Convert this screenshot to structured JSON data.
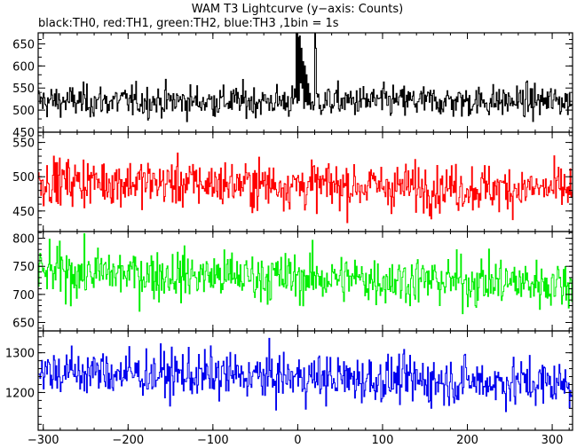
{
  "title": "WAM T3 Lightcurve (y−axis: Counts)",
  "subtitle": "black:TH0, red:TH1, green:TH2, blue:TH3 ,1bin = 1s",
  "chart_data": {
    "type": "line",
    "x_range": [
      -306,
      324
    ],
    "x_ticks": [
      -300,
      -200,
      -100,
      0,
      100,
      200,
      300
    ],
    "x_tick_labels": [
      "−300",
      "−200",
      "−100",
      "0",
      "100",
      "200",
      "300"
    ],
    "grid": false,
    "panels": [
      {
        "series": "TH0",
        "color": "#000000",
        "ylim": [
          450,
          675
        ],
        "y_ticks": [
          450,
          500,
          550,
          600,
          650
        ],
        "y_tick_labels": [
          "450",
          "500",
          "550",
          "600",
          "650"
        ],
        "mean": 520,
        "noise_sd": 18,
        "features": [
          {
            "x": -2,
            "value": 675
          },
          {
            "x": 0,
            "value": 665
          },
          {
            "x": 2,
            "value": 668
          },
          {
            "x": 4,
            "value": 640
          },
          {
            "x": 6,
            "value": 610
          },
          {
            "x": 8,
            "value": 600
          },
          {
            "x": 10,
            "value": 580
          },
          {
            "x": 12,
            "value": 560
          },
          {
            "x": 20,
            "value": 675
          },
          {
            "x": 21,
            "value": 640
          }
        ]
      },
      {
        "series": "TH1",
        "color": "#ff0000",
        "ylim": [
          420,
          565
        ],
        "y_ticks": [
          450,
          500,
          550
        ],
        "y_tick_labels": [
          "450",
          "500",
          "550"
        ],
        "mean": 488,
        "noise_sd": 17,
        "trend": -0.02,
        "features": []
      },
      {
        "series": "TH2",
        "color": "#00ee00",
        "ylim": [
          635,
          812
        ],
        "y_ticks": [
          650,
          700,
          750,
          800
        ],
        "y_tick_labels": [
          "650",
          "700",
          "750",
          "800"
        ],
        "mean": 730,
        "noise_sd": 22,
        "trend": -0.035,
        "features": []
      },
      {
        "series": "TH3",
        "color": "#0000ee",
        "ylim": [
          1105,
          1355
        ],
        "y_ticks": [
          1200,
          1300
        ],
        "y_tick_labels": [
          "1200",
          "1300"
        ],
        "mean": 1238,
        "noise_sd": 30,
        "trend": -0.05,
        "features": []
      }
    ]
  }
}
